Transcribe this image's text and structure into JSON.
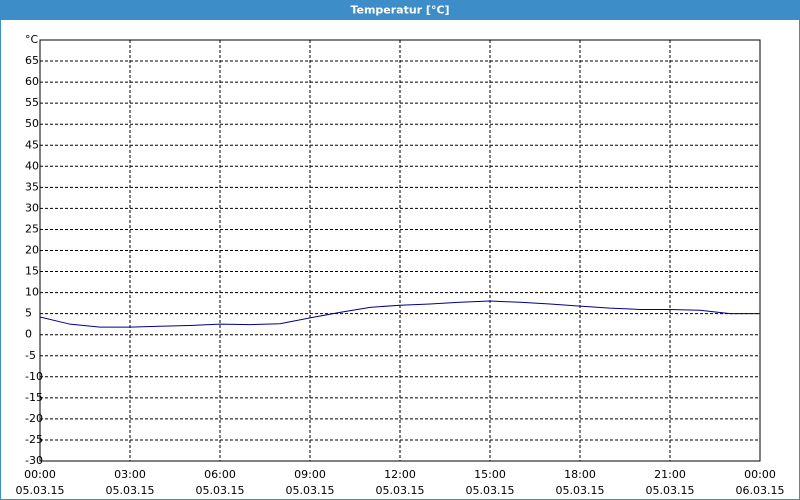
{
  "chart_data": {
    "type": "line",
    "title": "Temperatur [°C]",
    "x": [
      0,
      1,
      2,
      3,
      4,
      5,
      6,
      7,
      8,
      9,
      10,
      11,
      12,
      13,
      14,
      15,
      16,
      17,
      18,
      19,
      20,
      21,
      22,
      23,
      24
    ],
    "series": [
      {
        "name": "Temperatur",
        "color": "#000088",
        "values": [
          4.2,
          2.5,
          1.8,
          1.8,
          2,
          2.2,
          2.5,
          2.4,
          2.6,
          4,
          5.3,
          6.5,
          7,
          7.3,
          7.7,
          8,
          7.7,
          7.3,
          6.8,
          6.3,
          6,
          6,
          5.8,
          5,
          5
        ]
      }
    ],
    "xlim": [
      0,
      24
    ],
    "xticks": [
      {
        "value": 0,
        "label": "00:00"
      },
      {
        "value": 3,
        "label": "03:00"
      },
      {
        "value": 6,
        "label": "06:00"
      },
      {
        "value": 9,
        "label": "09:00"
      },
      {
        "value": 12,
        "label": "12:00"
      },
      {
        "value": 15,
        "label": "15:00"
      },
      {
        "value": 18,
        "label": "18:00"
      },
      {
        "value": 21,
        "label": "21:00"
      },
      {
        "value": 24,
        "label": "00:00"
      }
    ],
    "xtick_dates": [
      "05.03.15",
      "05.03.15",
      "05.03.15",
      "05.03.15",
      "05.03.15",
      "05.03.15",
      "05.03.15",
      "05.03.15",
      "06.03.15"
    ],
    "ylim": [
      -30,
      70
    ],
    "yticks": [
      -30,
      -25,
      -20,
      -15,
      -10,
      -5,
      0,
      5,
      10,
      15,
      20,
      25,
      30,
      35,
      40,
      45,
      50,
      55,
      60,
      65,
      {
        "value": 70,
        "label": "°C"
      }
    ],
    "grid": true
  }
}
